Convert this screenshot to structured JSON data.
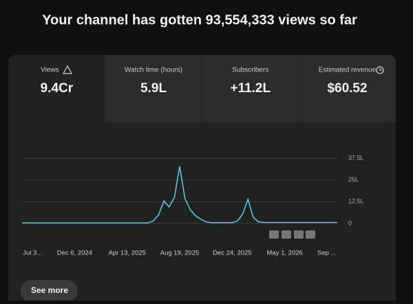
{
  "header": {
    "title": "Your channel has gotten 93,554,333 views so far"
  },
  "tabs": [
    {
      "label": "Views",
      "value": "9.4Cr"
    },
    {
      "label": "Watch time (hours)",
      "value": "5.9L"
    },
    {
      "label": "Subscribers",
      "value": "+11.2L"
    },
    {
      "label": "Estimated revenue",
      "value": "$60.52"
    }
  ],
  "chart_data": {
    "type": "line",
    "categories": [
      null,
      null,
      "Jul 3...",
      null,
      null,
      null,
      null,
      null,
      null,
      null,
      "Dec 6, 2024",
      null,
      null,
      null,
      null,
      null,
      null,
      null,
      null,
      null,
      "Apr 13, 2025",
      null,
      null,
      null,
      null,
      null,
      null,
      null,
      null,
      null,
      "Aug 19, 2025",
      null,
      null,
      null,
      null,
      null,
      null,
      null,
      null,
      null,
      "Dec 24, 2025",
      null,
      null,
      null,
      null,
      null,
      null,
      null,
      null,
      null,
      "May 1, 2026",
      null,
      null,
      null,
      null,
      null,
      null,
      null,
      "Sep ...",
      null,
      null
    ],
    "series": [
      {
        "color": "#56c8e8",
        "values": [
          40000,
          40000,
          40000,
          40000,
          40000,
          40000,
          40000,
          40000,
          40000,
          40000,
          40000,
          40000,
          40000,
          40000,
          40000,
          40000,
          40000,
          40000,
          40000,
          40000,
          40000,
          40000,
          40000,
          40000,
          40000,
          150000,
          500000,
          1300000,
          950000,
          1500000,
          3280000,
          1450000,
          800000,
          450000,
          250000,
          100000,
          50000,
          50000,
          50000,
          50000,
          50000,
          150000,
          550000,
          1400000,
          350000,
          100000,
          60000,
          60000,
          60000,
          60000,
          60000,
          60000,
          60000,
          60000,
          60000,
          60000,
          60000,
          60000,
          60000,
          60000,
          60000
        ]
      }
    ],
    "ylim": [
      0,
      3750000
    ],
    "yticks": [
      0,
      {
        "value": 1250000,
        "label": "12.5L"
      },
      {
        "value": 2500000,
        "label": "25L"
      },
      {
        "value": 3750000,
        "label": "37.5L"
      }
    ],
    "grid": true
  },
  "button": {
    "label": "See more"
  }
}
